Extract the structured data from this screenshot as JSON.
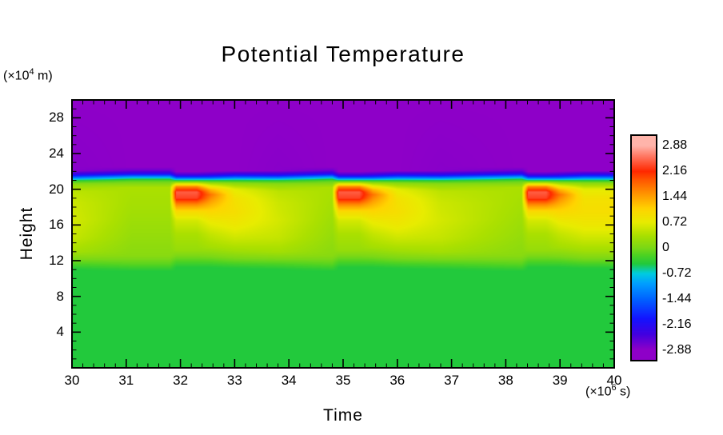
{
  "figure": {
    "title": "Potential Temperature",
    "xlabel": "Time",
    "ylabel": "Height",
    "y_unit": {
      "pre": "(×10",
      "sup": "4",
      "post": " m)"
    },
    "x_unit": {
      "pre": "(×10",
      "sup": "6",
      "post": " s)"
    }
  },
  "chart_data": {
    "type": "heatmap",
    "title": "Potential Temperature",
    "xlabel": "Time (x10^6 s)",
    "ylabel": "Height (x10^4 m)",
    "xlim": [
      30,
      40
    ],
    "ylim": [
      0,
      30
    ],
    "x_ticks": [
      30,
      31,
      32,
      33,
      34,
      35,
      36,
      37,
      38,
      39,
      40
    ],
    "x_minor_step": 0.2,
    "y_ticks": [
      4,
      8,
      12,
      16,
      20,
      24,
      28
    ],
    "y_minor_step": 1,
    "grid": false,
    "legend": "colorbar-right",
    "colorbar": {
      "vmin": -3.15,
      "vmax": 3.15,
      "tick_values": [
        2.88,
        2.16,
        1.44,
        0.72,
        0,
        -0.72,
        -1.44,
        -2.16,
        -2.88
      ],
      "tick_labels": [
        "2.88",
        "2.16",
        "1.44",
        "0.72",
        "0",
        "-0.72",
        "-1.44",
        "-2.16",
        "-2.88"
      ]
    },
    "colormap": [
      [
        -2.88,
        "#8e00c8"
      ],
      [
        -2.45,
        "#4400e0"
      ],
      [
        -2.0,
        "#1414ff"
      ],
      [
        -1.44,
        "#0064ff"
      ],
      [
        -1.0,
        "#00a0ff"
      ],
      [
        -0.72,
        "#00cde0"
      ],
      [
        -0.45,
        "#22c93c"
      ],
      [
        -0.2,
        "#4ed322"
      ],
      [
        0.0,
        "#7cd816"
      ],
      [
        0.35,
        "#abe000"
      ],
      [
        0.72,
        "#e8ec00"
      ],
      [
        1.1,
        "#ffd400"
      ],
      [
        1.44,
        "#ffa200"
      ],
      [
        1.9,
        "#ff5a00"
      ],
      [
        2.16,
        "#ff2800"
      ],
      [
        2.6,
        "#ff7a66"
      ],
      [
        2.88,
        "#ffb4aa"
      ]
    ],
    "field": {
      "description": "Potential-temperature anomaly vs time and height: purple stratosphere above ~22, thin blue/cyan interface ~21.5, warm plumes (red cores ~h=19.5) erupting near t=31.9, 34.9, 38.4 with yellow fans decaying downward, green lower atmosphere below ~12.",
      "event_times": [
        31.9,
        34.9,
        38.4
      ],
      "profiles": {
        "quiet": [
          [
            0,
            -0.45
          ],
          [
            10.8,
            -0.45
          ],
          [
            11.6,
            -0.15
          ],
          [
            12.6,
            0.1
          ],
          [
            15,
            0.2
          ],
          [
            18,
            0.3
          ],
          [
            20.2,
            0.35
          ],
          [
            20.9,
            -0.1
          ],
          [
            21.15,
            -0.45
          ],
          [
            21.45,
            -1.2
          ],
          [
            21.75,
            -2.2
          ],
          [
            22.15,
            -2.7
          ],
          [
            22.5,
            -2.88
          ],
          [
            30,
            -2.88
          ]
        ],
        "fresh": [
          [
            0,
            -0.45
          ],
          [
            11.2,
            -0.45
          ],
          [
            12.2,
            -0.1
          ],
          [
            13.2,
            0.2
          ],
          [
            15,
            0.35
          ],
          [
            16.5,
            0.6
          ],
          [
            17.5,
            1.0
          ],
          [
            18.3,
            1.6
          ],
          [
            19.0,
            2.3
          ],
          [
            19.7,
            2.45
          ],
          [
            20.3,
            1.6
          ],
          [
            20.7,
            0.5
          ],
          [
            21.0,
            -0.4
          ],
          [
            21.3,
            -1.5
          ],
          [
            21.6,
            -2.4
          ],
          [
            22.0,
            -2.88
          ],
          [
            30,
            -2.88
          ]
        ],
        "hot2": [
          [
            0,
            -0.45
          ],
          [
            11.2,
            -0.45
          ],
          [
            12.3,
            -0.05
          ],
          [
            13.5,
            0.3
          ],
          [
            15,
            0.5
          ],
          [
            16.3,
            0.75
          ],
          [
            17.5,
            1.05
          ],
          [
            18.5,
            1.4
          ],
          [
            19.4,
            1.75
          ],
          [
            20.0,
            1.3
          ],
          [
            20.6,
            0.4
          ],
          [
            21.0,
            -0.4
          ],
          [
            21.3,
            -1.5
          ],
          [
            21.65,
            -2.4
          ],
          [
            22.05,
            -2.88
          ],
          [
            30,
            -2.88
          ]
        ],
        "decay1": [
          [
            0,
            -0.45
          ],
          [
            11.1,
            -0.45
          ],
          [
            12.1,
            -0.05
          ],
          [
            13.2,
            0.3
          ],
          [
            14.5,
            0.55
          ],
          [
            16,
            0.8
          ],
          [
            17.5,
            0.95
          ],
          [
            19,
            0.9
          ],
          [
            20.0,
            0.7
          ],
          [
            20.7,
            0.1
          ],
          [
            21.05,
            -0.5
          ],
          [
            21.35,
            -1.4
          ],
          [
            21.7,
            -2.3
          ],
          [
            22.1,
            -2.88
          ],
          [
            30,
            -2.88
          ]
        ],
        "decay2": [
          [
            0,
            -0.45
          ],
          [
            11.0,
            -0.45
          ],
          [
            11.9,
            -0.1
          ],
          [
            13.0,
            0.3
          ],
          [
            14.5,
            0.5
          ],
          [
            16.5,
            0.6
          ],
          [
            18.5,
            0.55
          ],
          [
            19.8,
            0.45
          ],
          [
            20.6,
            0.1
          ],
          [
            21.0,
            -0.4
          ],
          [
            21.3,
            -1.3
          ],
          [
            21.65,
            -2.25
          ],
          [
            22.1,
            -2.85
          ],
          [
            30,
            -2.88
          ]
        ]
      },
      "keyframes": [
        [
          30.0,
          "decay2"
        ],
        [
          31.1,
          "quiet"
        ],
        [
          31.8,
          "quiet"
        ],
        [
          31.92,
          "fresh"
        ],
        [
          32.3,
          "fresh"
        ],
        [
          32.55,
          "hot2"
        ],
        [
          33.0,
          "decay1"
        ],
        [
          33.8,
          "decay2"
        ],
        [
          34.8,
          "quiet"
        ],
        [
          34.92,
          "fresh"
        ],
        [
          35.3,
          "fresh"
        ],
        [
          35.55,
          "hot2"
        ],
        [
          36.0,
          "decay1"
        ],
        [
          36.8,
          "decay2"
        ],
        [
          38.3,
          "quiet"
        ],
        [
          38.42,
          "fresh"
        ],
        [
          38.75,
          "fresh"
        ],
        [
          39.0,
          "hot2"
        ],
        [
          39.45,
          "decay1"
        ],
        [
          40.0,
          "decay1"
        ]
      ]
    }
  }
}
